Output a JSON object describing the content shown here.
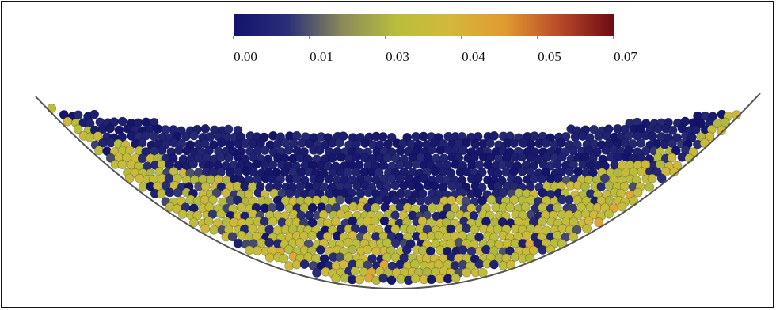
{
  "chart_data": {
    "type": "colorbar",
    "colormap": [
      "#13136b",
      "#2a2f78",
      "#8a8a5a",
      "#b8be3c",
      "#d4b83a",
      "#e09a30",
      "#b84a2a",
      "#6e0a12"
    ],
    "lim": [
      0,
      0.0675
    ],
    "ticks": [
      {
        "value": 0,
        "label": "0.00"
      },
      {
        "value": 0.0135,
        "label": "0.01"
      },
      {
        "value": 0.027,
        "label": "0.03"
      },
      {
        "value": 0.0405,
        "label": "0.04"
      },
      {
        "value": 0.054,
        "label": "0.05"
      },
      {
        "value": 0.0675,
        "label": "0.07"
      }
    ]
  }
}
